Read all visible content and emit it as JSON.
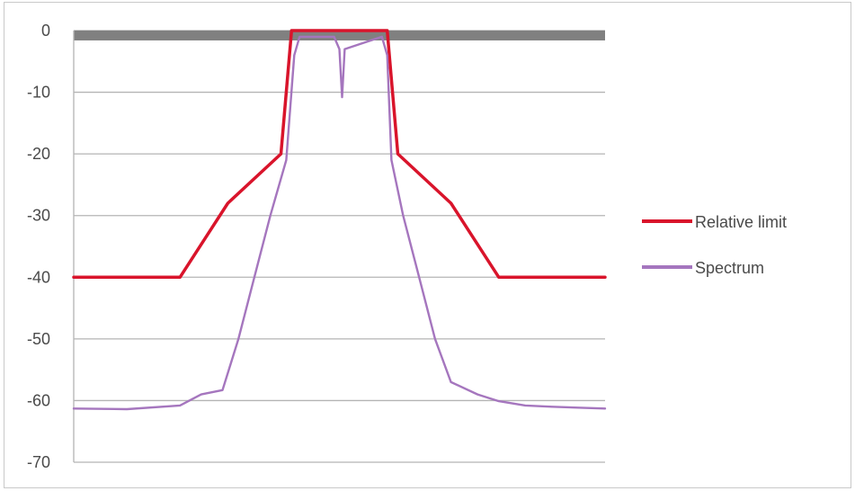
{
  "chart_data": {
    "type": "line",
    "title": "",
    "xlabel": "",
    "ylabel": "",
    "ylim": [
      -70,
      0
    ],
    "yticks": [
      0,
      -10,
      -20,
      -30,
      -40,
      -50,
      -60,
      -70
    ],
    "ytick_labels": [
      "0",
      "-10",
      "-20",
      "-30",
      "-40",
      "-50",
      "-60",
      "-70"
    ],
    "xlim": [
      0,
      100
    ],
    "grid": true,
    "legend_position": "right",
    "band": {
      "y_from": -1.6,
      "y_to": 0,
      "color": "#808080"
    },
    "series": [
      {
        "name": "Relative limit",
        "color": "#d9142b",
        "points": [
          [
            0,
            -40
          ],
          [
            20,
            -40
          ],
          [
            29,
            -28
          ],
          [
            39,
            -20
          ],
          [
            41,
            0
          ],
          [
            59,
            0
          ],
          [
            61,
            -20
          ],
          [
            71,
            -28
          ],
          [
            80,
            -40
          ],
          [
            100,
            -40
          ]
        ]
      },
      {
        "name": "Spectrum",
        "color": "#a576be",
        "points": [
          [
            0,
            -61.3
          ],
          [
            10,
            -61.4
          ],
          [
            20,
            -60.8
          ],
          [
            24,
            -59
          ],
          [
            28,
            -58.3
          ],
          [
            31,
            -50
          ],
          [
            34,
            -40
          ],
          [
            37,
            -30
          ],
          [
            40,
            -21
          ],
          [
            41.5,
            -4
          ],
          [
            42.5,
            -1
          ],
          [
            49,
            -1
          ],
          [
            50,
            -3
          ],
          [
            50.5,
            -10.8
          ],
          [
            51,
            -3
          ],
          [
            58,
            -1
          ],
          [
            59,
            -4
          ],
          [
            59.8,
            -21
          ],
          [
            62,
            -30
          ],
          [
            65,
            -40
          ],
          [
            68,
            -50
          ],
          [
            71,
            -57
          ],
          [
            76,
            -59
          ],
          [
            80,
            -60.1
          ],
          [
            85,
            -60.8
          ],
          [
            90,
            -61
          ],
          [
            100,
            -61.3
          ]
        ]
      }
    ]
  }
}
